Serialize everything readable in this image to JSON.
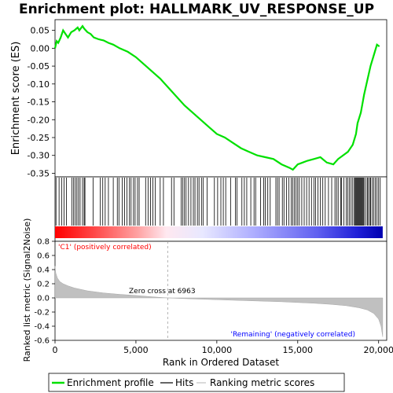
{
  "title": "Enrichment plot: HALLMARK_UV_RESPONSE_UP",
  "ylabel_es": "Enrichment score (ES)",
  "ylabel_metric": "Ranked list metric (Signal2Noise)",
  "xlabel": "Rank in Ordered Dataset",
  "annotations": {
    "positive": "'C1' (positively correlated)",
    "negative": "'Remaining' (negatively correlated)",
    "zero_cross": "Zero cross at 6963"
  },
  "legend": {
    "items": [
      {
        "label": "Enrichment profile",
        "color": "#00e000"
      },
      {
        "label": "Hits",
        "color": "#000000"
      },
      {
        "label": "Ranking metric scores",
        "color": "#c0c0c0"
      }
    ]
  },
  "colors": {
    "es_line": "#00e000",
    "metric_fill": "#c0c0c0",
    "positive_text": "#ff0000",
    "negative_text": "#0000ff"
  },
  "chart_data": [
    {
      "type": "line",
      "name": "enrichment-profile",
      "xlim": [
        0,
        20500
      ],
      "ylim": [
        -0.36,
        0.08
      ],
      "yticks": [
        0.05,
        0.0,
        -0.05,
        -0.1,
        -0.15,
        -0.2,
        -0.25,
        -0.3,
        -0.35
      ],
      "ytick_labels": [
        "0.05",
        "0.00",
        "-0.05",
        "-0.10",
        "-0.15",
        "-0.20",
        "-0.25",
        "-0.30",
        "-0.35"
      ],
      "x": [
        0,
        100,
        200,
        350,
        500,
        650,
        800,
        1000,
        1200,
        1400,
        1500,
        1700,
        1800,
        2000,
        2200,
        2400,
        2700,
        3000,
        3300,
        3600,
        4000,
        4500,
        5000,
        5500,
        6000,
        6500,
        7000,
        7500,
        8000,
        8500,
        9000,
        9500,
        10000,
        10500,
        11000,
        11500,
        12000,
        12500,
        13000,
        13500,
        14000,
        14500,
        14700,
        15000,
        15300,
        15600,
        16000,
        16400,
        16800,
        17200,
        17500,
        17800,
        18100,
        18400,
        18600,
        18700,
        18900,
        19100,
        19300,
        19500,
        19700,
        19900,
        20050
      ],
      "y": [
        0.0,
        0.02,
        0.015,
        0.03,
        0.05,
        0.04,
        0.03,
        0.045,
        0.05,
        0.058,
        0.05,
        0.062,
        0.055,
        0.045,
        0.04,
        0.03,
        0.025,
        0.022,
        0.015,
        0.01,
        0.0,
        -0.01,
        -0.025,
        -0.045,
        -0.065,
        -0.085,
        -0.11,
        -0.135,
        -0.16,
        -0.18,
        -0.2,
        -0.22,
        -0.24,
        -0.25,
        -0.265,
        -0.28,
        -0.29,
        -0.3,
        -0.305,
        -0.31,
        -0.325,
        -0.335,
        -0.34,
        -0.325,
        -0.32,
        -0.315,
        -0.31,
        -0.305,
        -0.32,
        -0.325,
        -0.31,
        -0.3,
        -0.29,
        -0.27,
        -0.24,
        -0.21,
        -0.18,
        -0.13,
        -0.09,
        -0.05,
        -0.02,
        0.01,
        0.005
      ]
    },
    {
      "type": "area",
      "name": "ranking-metric",
      "xlim": [
        0,
        20500
      ],
      "ylim": [
        -0.6,
        0.8
      ],
      "yticks": [
        0.8,
        0.6,
        0.4,
        0.2,
        0.0,
        -0.2,
        -0.4,
        -0.6
      ],
      "ytick_labels": [
        "0.8",
        "0.6",
        "0.4",
        "0.2",
        "0.0",
        "-0.2",
        "-0.4",
        "-0.6"
      ],
      "xticks": [
        0,
        5000,
        10000,
        15000,
        20000
      ],
      "xtick_labels": [
        "0",
        "5,000",
        "10,000",
        "15,000",
        "20,000"
      ],
      "zero_cross": 6963,
      "x": [
        0,
        50,
        150,
        300,
        500,
        800,
        1200,
        2000,
        3000,
        4000,
        5000,
        6000,
        6963,
        8000,
        10000,
        12000,
        14000,
        16000,
        17000,
        18000,
        18800,
        19300,
        19700,
        20000,
        20150,
        20250
      ],
      "y": [
        0.45,
        0.35,
        0.28,
        0.23,
        0.2,
        0.17,
        0.14,
        0.1,
        0.07,
        0.05,
        0.035,
        0.015,
        0.0,
        -0.01,
        -0.025,
        -0.04,
        -0.055,
        -0.075,
        -0.09,
        -0.11,
        -0.14,
        -0.17,
        -0.22,
        -0.3,
        -0.4,
        -0.55
      ]
    },
    {
      "type": "scatter",
      "name": "hits",
      "x": [
        60,
        250,
        420,
        560,
        700,
        1050,
        1150,
        1250,
        1350,
        1450,
        1550,
        1700,
        1800,
        1850,
        2350,
        2800,
        2950,
        3100,
        3300,
        3600,
        3850,
        3950,
        4150,
        4300,
        4450,
        4600,
        4700,
        4850,
        4950,
        5100,
        5200,
        5600,
        5750,
        5900,
        6050,
        6200,
        6500,
        6700,
        7200,
        7350,
        7800,
        7900,
        8000,
        8100,
        8250,
        8400,
        8550,
        8650,
        8800,
        8900,
        9050,
        9150,
        9400,
        9850,
        10050,
        10250,
        10400,
        10550,
        10850,
        11150,
        11250,
        11550,
        11700,
        11850,
        12100,
        12300,
        12400,
        12700,
        12900,
        13000,
        13150,
        13300,
        13650,
        13750,
        13850,
        14050,
        14150,
        14300,
        14450,
        14600,
        14700,
        14800,
        14900,
        15000,
        15100,
        15250,
        15400,
        15550,
        15700,
        15850,
        16000,
        16100,
        16250,
        16400,
        16550,
        16700,
        16900,
        17100,
        17300,
        17400,
        17500,
        17650,
        17700,
        17850,
        18000,
        18100,
        18200,
        18300,
        18400,
        18500,
        18550,
        18600,
        18650,
        18700,
        18750,
        18800,
        18850,
        18900,
        18950,
        19000,
        19050,
        19100,
        19200,
        19300,
        19350,
        19450,
        19500,
        19600,
        19700,
        19800,
        19900,
        20000,
        20100
      ]
    }
  ]
}
